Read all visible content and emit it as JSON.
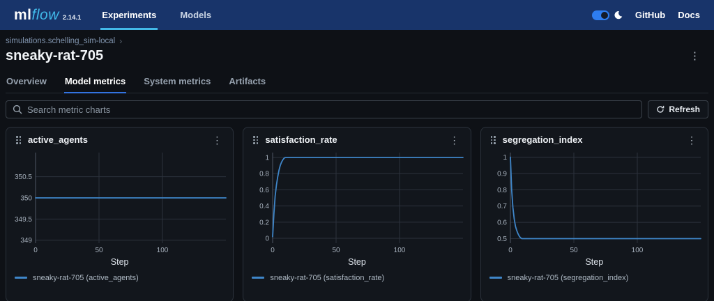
{
  "navbar": {
    "logo_ml": "ml",
    "logo_flow": "flow",
    "version": "2.14.1",
    "items": [
      {
        "label": "Experiments",
        "active": true
      },
      {
        "label": "Models",
        "active": false
      }
    ],
    "links": [
      {
        "label": "GitHub"
      },
      {
        "label": "Docs"
      }
    ]
  },
  "header": {
    "breadcrumb": "simulations.schelling_sim-local",
    "title": "sneaky-rat-705"
  },
  "tabs": [
    {
      "label": "Overview",
      "active": false
    },
    {
      "label": "Model metrics",
      "active": true
    },
    {
      "label": "System metrics",
      "active": false
    },
    {
      "label": "Artifacts",
      "active": false
    }
  ],
  "toolbar": {
    "search_placeholder": "Search metric charts",
    "refresh_label": "Refresh"
  },
  "icons": {
    "kebab": "⋮",
    "chevron": "›"
  },
  "colors": {
    "navbar_bg": "#18346a",
    "accent_cyan": "#43b9e8",
    "tab_underline": "#3373e0",
    "line_blue": "#3f86c9",
    "grid": "#2c323c",
    "axis": "#4d5663",
    "tick_text": "#a6b0bc"
  },
  "chart_data": [
    {
      "type": "line",
      "title": "active_agents",
      "legend": "sneaky-rat-705 (active_agents)",
      "xlabel": "Step",
      "xlim": [
        0,
        150
      ],
      "xticks": [
        0,
        50,
        100
      ],
      "ylim": [
        348.93,
        351.07
      ],
      "yticks": [
        349,
        349.5,
        350,
        350.5
      ],
      "series": [
        {
          "name": "sneaky-rat-705",
          "color": "#3f86c9",
          "points": [
            [
              0,
              350
            ],
            [
              150,
              350
            ]
          ]
        }
      ]
    },
    {
      "type": "line",
      "title": "satisfaction_rate",
      "legend": "sneaky-rat-705 (satisfaction_rate)",
      "xlabel": "Step",
      "xlim": [
        0,
        150
      ],
      "xticks": [
        0,
        50,
        100
      ],
      "ylim": [
        -0.06,
        1.06
      ],
      "yticks": [
        0,
        0.2,
        0.4,
        0.6,
        0.8,
        1
      ],
      "series": [
        {
          "name": "sneaky-rat-705",
          "color": "#3f86c9",
          "points": [
            [
              0,
              0.02
            ],
            [
              1,
              0.3
            ],
            [
              2,
              0.52
            ],
            [
              3,
              0.66
            ],
            [
              4,
              0.76
            ],
            [
              5,
              0.84
            ],
            [
              6,
              0.9
            ],
            [
              7,
              0.94
            ],
            [
              8,
              0.97
            ],
            [
              9,
              0.99
            ],
            [
              10,
              1.0
            ],
            [
              150,
              1.0
            ]
          ]
        }
      ]
    },
    {
      "type": "line",
      "title": "segregation_index",
      "legend": "sneaky-rat-705 (segregation_index)",
      "xlabel": "Step",
      "xlim": [
        0,
        150
      ],
      "xticks": [
        0,
        50,
        100
      ],
      "ylim": [
        0.472,
        1.028
      ],
      "yticks": [
        0.5,
        0.6,
        0.7,
        0.8,
        0.9,
        1
      ],
      "series": [
        {
          "name": "sneaky-rat-705",
          "color": "#3f86c9",
          "points": [
            [
              0,
              1.0
            ],
            [
              1,
              0.8
            ],
            [
              2,
              0.69
            ],
            [
              3,
              0.62
            ],
            [
              4,
              0.575
            ],
            [
              5,
              0.55
            ],
            [
              6,
              0.53
            ],
            [
              7,
              0.515
            ],
            [
              8,
              0.505
            ],
            [
              9,
              0.5
            ],
            [
              150,
              0.5
            ]
          ]
        }
      ]
    }
  ]
}
